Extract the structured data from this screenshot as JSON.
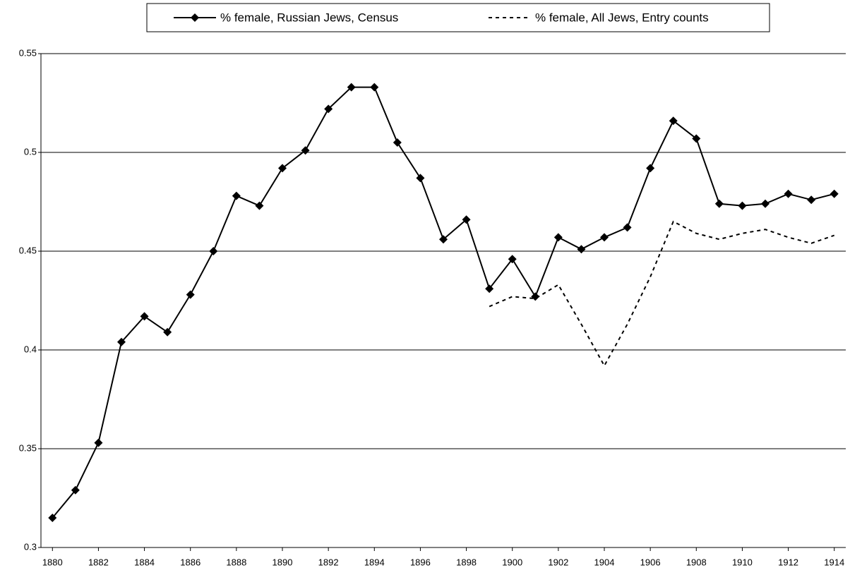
{
  "chart_data": {
    "type": "line",
    "x": [
      1880,
      1881,
      1882,
      1883,
      1884,
      1885,
      1886,
      1887,
      1888,
      1889,
      1890,
      1891,
      1892,
      1893,
      1894,
      1895,
      1896,
      1897,
      1898,
      1899,
      1900,
      1901,
      1902,
      1903,
      1904,
      1905,
      1906,
      1907,
      1908,
      1909,
      1910,
      1911,
      1912,
      1913,
      1914
    ],
    "series": [
      {
        "name": "% female, Russian Jews, Census",
        "color": "#000000",
        "marker": "diamond",
        "dash": false,
        "values": [
          0.315,
          0.329,
          0.353,
          0.404,
          0.417,
          0.409,
          0.428,
          0.45,
          0.478,
          0.473,
          0.492,
          0.501,
          0.522,
          0.533,
          0.533,
          0.505,
          0.487,
          0.456,
          0.466,
          0.431,
          0.446,
          0.427,
          0.457,
          0.451,
          0.457,
          0.462,
          0.492,
          0.516,
          0.507,
          0.474,
          0.473,
          0.474,
          0.479,
          0.476,
          0.479
        ]
      },
      {
        "name": "% female, All Jews, Entry counts",
        "color": "#000000",
        "marker": "none",
        "dash": true,
        "values": [
          null,
          null,
          null,
          null,
          null,
          null,
          null,
          null,
          null,
          null,
          null,
          null,
          null,
          null,
          null,
          null,
          null,
          null,
          null,
          0.422,
          0.427,
          0.426,
          0.433,
          0.413,
          0.392,
          0.413,
          0.437,
          0.465,
          0.459,
          0.456,
          0.459,
          0.461,
          0.457,
          0.454,
          0.458
        ]
      }
    ],
    "xlim": [
      1879.5,
      1914.5
    ],
    "xticks": [
      1880,
      1882,
      1884,
      1886,
      1888,
      1890,
      1892,
      1894,
      1896,
      1898,
      1900,
      1902,
      1904,
      1906,
      1908,
      1910,
      1912,
      1914
    ],
    "ylim": [
      0.3,
      0.55
    ],
    "yticks": [
      0.3,
      0.35,
      0.4,
      0.45,
      0.5,
      0.55
    ],
    "grid": true,
    "legend": "top"
  }
}
